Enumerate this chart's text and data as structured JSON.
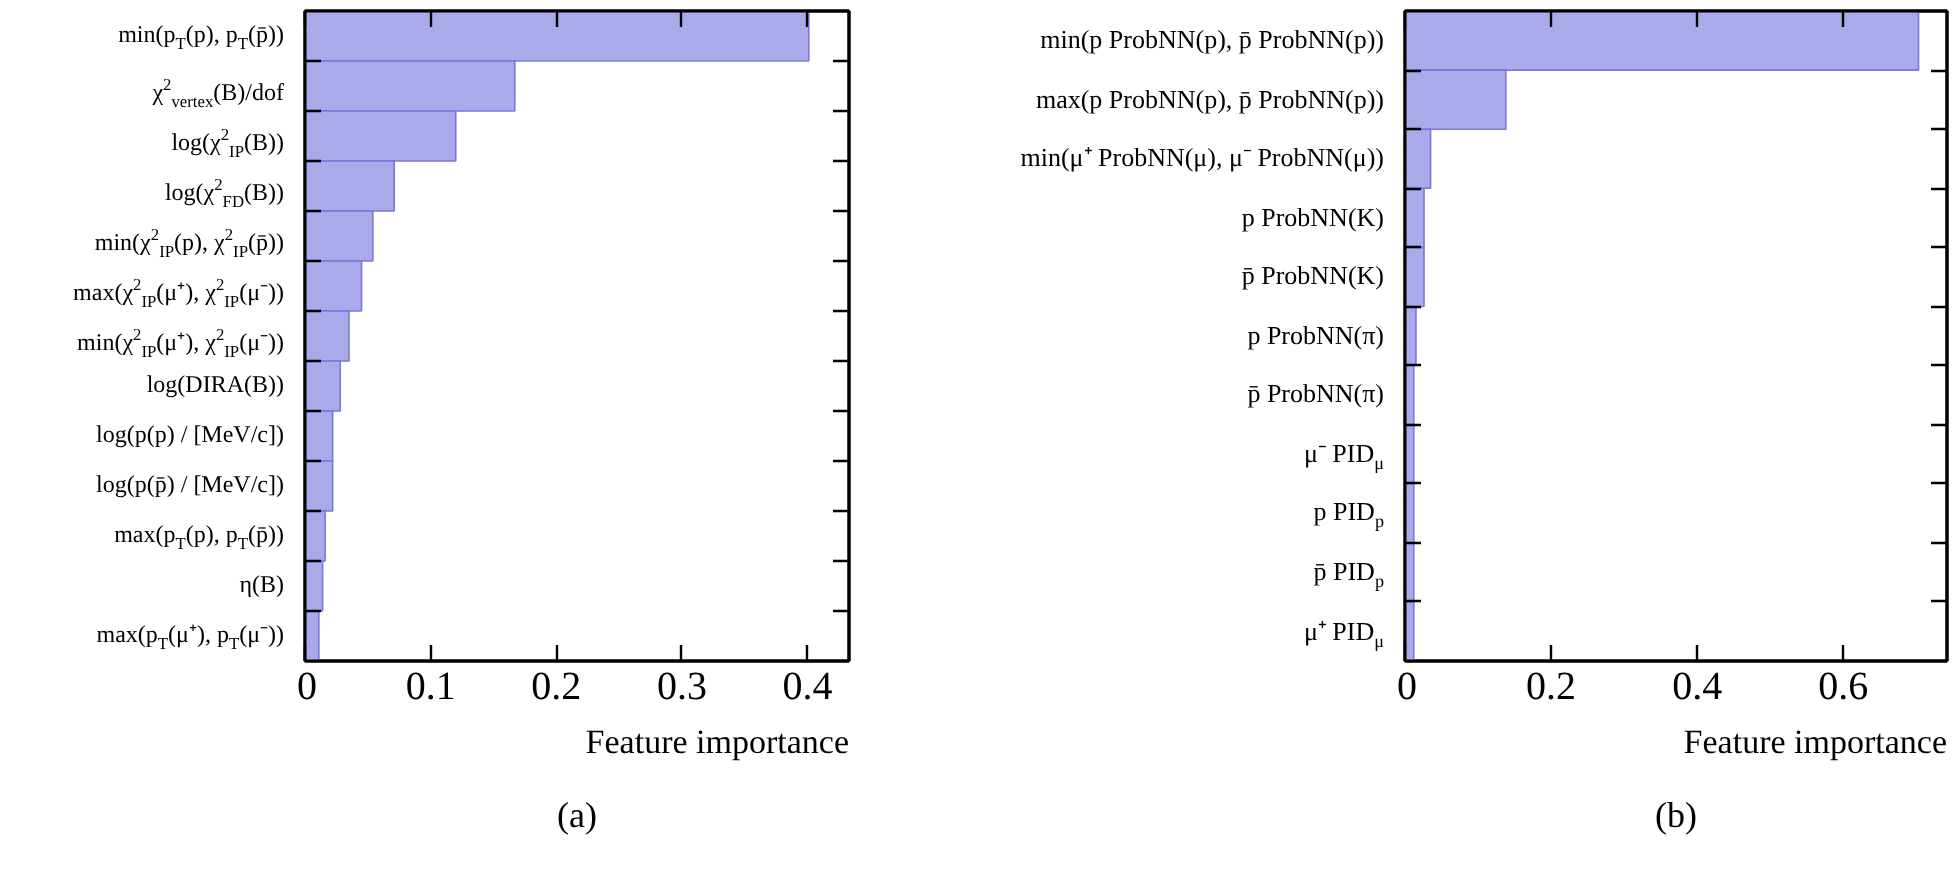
{
  "chart_data": [
    {
      "type": "bar",
      "orientation": "horizontal",
      "xlabel": "Feature importance",
      "annotations": [
        "(a)"
      ],
      "categories": [
        "min(p$_{T}$(p), p$_{T}$(p̄))",
        "χ$^{2}$$_{vertex}$(B)/dof",
        "log(χ$^{2}$$_{IP}$(B))",
        "log(χ$^{2}$$_{FD}$(B))",
        "min(χ$^{2}$$_{IP}$(p), χ$^{2}$$_{IP}$(p̄))",
        "max(χ$^{2}$$_{IP}$(μ⁺), χ$^{2}$$_{IP}$(μ⁻))",
        "min(χ$^{2}$$_{IP}$(μ⁺), χ$^{2}$$_{IP}$(μ⁻))",
        "log(DIRA(B))",
        "log(p(p) / [MeV/c])",
        "log(p(p̄) / [MeV/c])",
        "max(p$_{T}$(p), p$_{T}$(p̄))",
        "η(B)",
        "max(p$_{T}$(μ⁺), p$_{T}$(μ⁻))"
      ],
      "values": [
        0.401,
        0.167,
        0.12,
        0.071,
        0.054,
        0.045,
        0.035,
        0.028,
        0.022,
        0.022,
        0.016,
        0.014,
        0.011
      ],
      "color": "#aaaaea",
      "xlim": [
        0,
        0.433
      ],
      "xticks": [
        0,
        0.1,
        0.2,
        0.3,
        0.4
      ],
      "grid": false
    },
    {
      "type": "bar",
      "orientation": "horizontal",
      "xlabel": "Feature importance",
      "annotations": [
        "(b)"
      ],
      "categories": [
        "min(p ProbNN(p), p̄ ProbNN(p))",
        "max(p ProbNN(p), p̄ ProbNN(p))",
        "min(μ⁺ ProbNN(μ), μ⁻ ProbNN(μ))",
        "p ProbNN(K)",
        "p̄ ProbNN(K)",
        "p ProbNN(π)",
        "p̄ ProbNN(π)",
        "μ⁻ PID$_{μ}$",
        "p PID$_{p}$",
        "p̄ PID$_{p}$",
        "μ⁺ PID$_{μ}$"
      ],
      "values": [
        0.703,
        0.138,
        0.035,
        0.026,
        0.026,
        0.015,
        0.012,
        0.012,
        0.012,
        0.012,
        0.012
      ],
      "color": "#aaaaea",
      "xlim": [
        0,
        0.742
      ],
      "xticks": [
        0,
        0.2,
        0.4,
        0.6
      ],
      "grid": false
    }
  ]
}
